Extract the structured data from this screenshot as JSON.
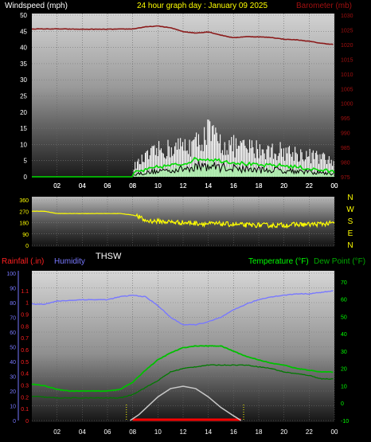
{
  "header": {
    "left_title": "Windspeed (mph)",
    "center_title": "24 hour graph day : January 09 2025",
    "right_title": "Barometer (mb)"
  },
  "colors": {
    "background": "#000000",
    "wind_max": "#ffffff",
    "wind_avg": "#00dd00",
    "wind_dark": "#000000",
    "wind_fill": "#aaeeaa",
    "barometer": "#8b1a1a",
    "direction": "#ffff00",
    "humidity": "#7878ff",
    "temperature": "#00c000",
    "dewpoint": "#007a00",
    "rain": "#ff0000",
    "solar": "#c8c8c8",
    "label_yellow": "#ffff00",
    "label_green": "#00ff00",
    "label_blue": "#7878ff",
    "label_red": "#ff2020",
    "label_darkred": "#a01010"
  },
  "chart_data": [
    {
      "type": "line",
      "name": "wind-barometer",
      "x_ticks": [
        "02",
        "04",
        "06",
        "08",
        "10",
        "12",
        "14",
        "16",
        "18",
        "20",
        "22",
        "00"
      ],
      "left_axis": {
        "label": "Windspeed (mph)",
        "range": [
          0,
          50
        ],
        "ticks": [
          0,
          5,
          10,
          15,
          20,
          25,
          30,
          35,
          40,
          45,
          50
        ]
      },
      "right_axis": {
        "label": "Barometer (mb)",
        "range": [
          975,
          1030
        ],
        "ticks": [
          975,
          980,
          985,
          990,
          995,
          1000,
          1005,
          1010,
          1015,
          1020,
          1025,
          1030
        ]
      },
      "barometer": [
        [
          0,
          1025.3
        ],
        [
          2,
          1025.3
        ],
        [
          4,
          1025.2
        ],
        [
          6,
          1025.2
        ],
        [
          8,
          1025.3
        ],
        [
          9,
          1026
        ],
        [
          10,
          1026.3
        ],
        [
          11,
          1025.7
        ],
        [
          12,
          1024.4
        ],
        [
          13,
          1023.9
        ],
        [
          14,
          1024.3
        ],
        [
          15,
          1023.2
        ],
        [
          16,
          1022.3
        ],
        [
          17,
          1022.7
        ],
        [
          18,
          1022.6
        ],
        [
          19,
          1022.4
        ],
        [
          20,
          1021.8
        ],
        [
          21,
          1021.6
        ],
        [
          22,
          1021.1
        ],
        [
          23,
          1020.4
        ],
        [
          24,
          1020.0
        ]
      ],
      "wind_avg": [
        [
          0,
          0
        ],
        [
          8,
          0
        ],
        [
          8.2,
          1.5
        ],
        [
          9,
          2
        ],
        [
          10,
          3
        ],
        [
          11,
          3.5
        ],
        [
          12,
          4
        ],
        [
          13,
          5.5
        ],
        [
          14,
          5.5
        ],
        [
          15,
          5
        ],
        [
          16,
          4.5
        ],
        [
          17,
          4
        ],
        [
          18,
          3.5
        ],
        [
          19,
          3.5
        ],
        [
          20,
          3.5
        ],
        [
          21,
          3
        ],
        [
          22,
          2.5
        ],
        [
          23,
          2
        ],
        [
          24,
          1.5
        ]
      ],
      "wind_gust_peak": [
        [
          8,
          4
        ],
        [
          9,
          8
        ],
        [
          10,
          11
        ],
        [
          11,
          12
        ],
        [
          12,
          13
        ],
        [
          13,
          14
        ],
        [
          14,
          19
        ],
        [
          15,
          14
        ],
        [
          16,
          13
        ],
        [
          17,
          12
        ],
        [
          18,
          12
        ],
        [
          19,
          11
        ],
        [
          20,
          11
        ],
        [
          21,
          10
        ],
        [
          22,
          9
        ],
        [
          23,
          8
        ],
        [
          24,
          6
        ]
      ]
    },
    {
      "type": "line",
      "name": "wind-direction",
      "label": "THSW",
      "x_ticks": [
        "02",
        "04",
        "06",
        "08",
        "10",
        "12",
        "14",
        "16",
        "18",
        "20",
        "22",
        "00"
      ],
      "left_axis": {
        "range": [
          0,
          360
        ],
        "ticks": [
          0,
          90,
          180,
          270,
          360
        ]
      },
      "right_axis": {
        "ticks": [
          "N",
          "W",
          "S",
          "E",
          "N"
        ]
      },
      "direction": [
        [
          0,
          270
        ],
        [
          1,
          270
        ],
        [
          2,
          252
        ],
        [
          4,
          252
        ],
        [
          6,
          252
        ],
        [
          7,
          252
        ],
        [
          8,
          240
        ],
        [
          8.4,
          230
        ],
        [
          9,
          195
        ],
        [
          10,
          190
        ],
        [
          11,
          185
        ],
        [
          12,
          180
        ],
        [
          13,
          175
        ],
        [
          14,
          170
        ],
        [
          15,
          170
        ],
        [
          16,
          165
        ],
        [
          17,
          160
        ],
        [
          18,
          160
        ],
        [
          19,
          158
        ],
        [
          20,
          160
        ],
        [
          21,
          165
        ],
        [
          22,
          165
        ],
        [
          23,
          170
        ],
        [
          24,
          175
        ]
      ]
    },
    {
      "type": "line",
      "name": "temp-humidity-rain",
      "x_ticks": [
        "02",
        "04",
        "06",
        "08",
        "10",
        "12",
        "14",
        "16",
        "18",
        "20",
        "22",
        "00"
      ],
      "humidity_axis": {
        "label": "Humidity",
        "range": [
          0,
          100
        ],
        "ticks": [
          0,
          10,
          20,
          30,
          40,
          50,
          60,
          70,
          80,
          90,
          100
        ]
      },
      "rain_axis": {
        "label": "Rainfall (.in)",
        "range": [
          0,
          1.2
        ],
        "ticks": [
          "0",
          "0.1",
          "0.2",
          "0.3",
          "0.4",
          "0.5",
          "0.6",
          "0.7",
          "0.8",
          "0.9",
          "1",
          "1.1"
        ]
      },
      "temp_axis": {
        "label": "Temperature (°F)",
        "label2": "Dew Point (°F)",
        "range": [
          -10,
          75
        ],
        "ticks": [
          -10,
          0,
          10,
          20,
          30,
          40,
          50,
          60,
          70
        ]
      },
      "humidity": [
        [
          0,
          79
        ],
        [
          1,
          79
        ],
        [
          2,
          81
        ],
        [
          4,
          82
        ],
        [
          6,
          82
        ],
        [
          7,
          84
        ],
        [
          8,
          85
        ],
        [
          9,
          84
        ],
        [
          10,
          78
        ],
        [
          11,
          70
        ],
        [
          12,
          65
        ],
        [
          13,
          65
        ],
        [
          14,
          67
        ],
        [
          15,
          70
        ],
        [
          16,
          75
        ],
        [
          17,
          79
        ],
        [
          18,
          82
        ],
        [
          19,
          84
        ],
        [
          20,
          85
        ],
        [
          21,
          86
        ],
        [
          22,
          86
        ],
        [
          23,
          87
        ],
        [
          24,
          88
        ]
      ],
      "temperature": [
        [
          0,
          11
        ],
        [
          1,
          10
        ],
        [
          2,
          8
        ],
        [
          3,
          7
        ],
        [
          4,
          7
        ],
        [
          5,
          7
        ],
        [
          6,
          7
        ],
        [
          7,
          8
        ],
        [
          8,
          12
        ],
        [
          9,
          19
        ],
        [
          10,
          25
        ],
        [
          11,
          29
        ],
        [
          12,
          32
        ],
        [
          13,
          33
        ],
        [
          14,
          33
        ],
        [
          15,
          33
        ],
        [
          16,
          30
        ],
        [
          17,
          27
        ],
        [
          18,
          25
        ],
        [
          19,
          23
        ],
        [
          20,
          22
        ],
        [
          21,
          20
        ],
        [
          22,
          19
        ],
        [
          23,
          18
        ],
        [
          24,
          18
        ]
      ],
      "dewpoint": [
        [
          0,
          4
        ],
        [
          2,
          3
        ],
        [
          4,
          3
        ],
        [
          6,
          3
        ],
        [
          7,
          3
        ],
        [
          8,
          5
        ],
        [
          9,
          9
        ],
        [
          10,
          13
        ],
        [
          11,
          18
        ],
        [
          12,
          20
        ],
        [
          13,
          21
        ],
        [
          14,
          22
        ],
        [
          15,
          22
        ],
        [
          16,
          22
        ],
        [
          17,
          22
        ],
        [
          18,
          21
        ],
        [
          19,
          20
        ],
        [
          20,
          18
        ],
        [
          21,
          17
        ],
        [
          22,
          16
        ],
        [
          23,
          14
        ],
        [
          24,
          14
        ]
      ],
      "solar_curve": [
        [
          7.8,
          0
        ],
        [
          8.5,
          0.05
        ],
        [
          9,
          0.1
        ],
        [
          10,
          0.2
        ],
        [
          11,
          0.27
        ],
        [
          12,
          0.29
        ],
        [
          13,
          0.27
        ],
        [
          14,
          0.2
        ],
        [
          15,
          0.11
        ],
        [
          16,
          0.04
        ],
        [
          16.6,
          0
        ]
      ],
      "rain": [
        [
          8,
          0
        ],
        [
          16.6,
          0
        ]
      ],
      "sun_markers": [
        7.5,
        16.8
      ]
    }
  ]
}
